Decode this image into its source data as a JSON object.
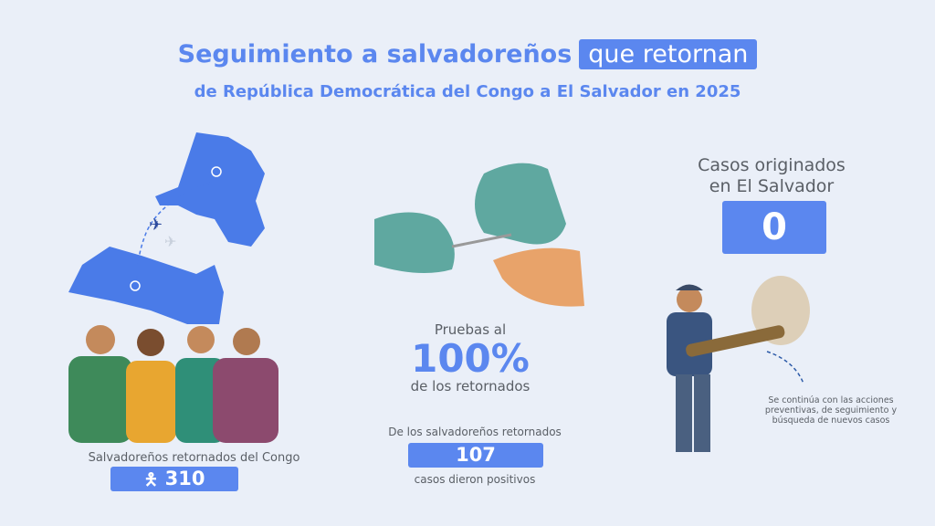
{
  "header": {
    "title": "Seguimiento a salvadoreños",
    "title_highlight": "que retornan",
    "subtitle": "de República Democrática del Congo a El Salvador en 2025"
  },
  "left": {
    "label": "Salvadoreños retornados del Congo",
    "count": "310",
    "icon": "person-icon"
  },
  "center": {
    "tests_prefix": "Pruebas al",
    "tests_percent": "100%",
    "tests_suffix": "de los retornados",
    "positives_prefix": "De los salvadoreños retornados",
    "positives_count": "107",
    "positives_suffix": "casos dieron positivos"
  },
  "right": {
    "cases_label_1": "Casos originados",
    "cases_label_2": "en El Salvador",
    "cases_count": "0",
    "note": "Se continúa con las acciones preventivas, de seguimiento y búsqueda de nuevos casos"
  },
  "colors": {
    "accent": "#5b87ef",
    "background": "#eaeff8"
  }
}
